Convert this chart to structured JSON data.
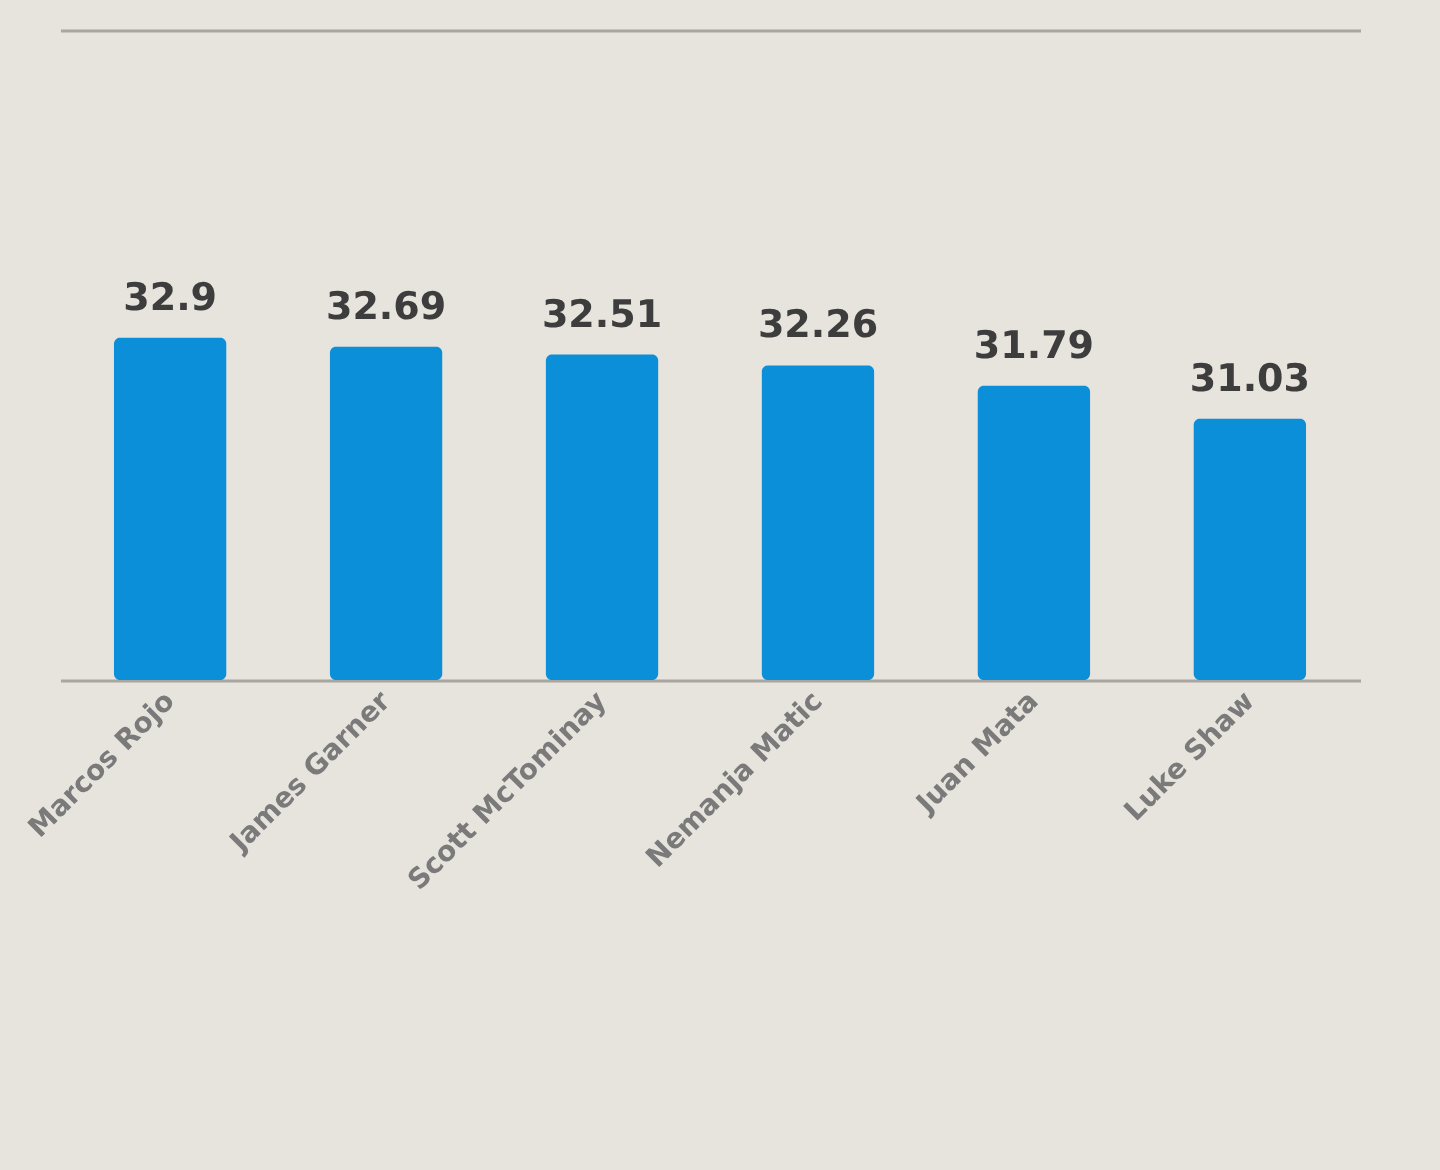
{
  "chart_data": {
    "type": "bar",
    "categories": [
      "Marcos Rojo",
      "James Garner",
      "Scott McTominay",
      "Nemanja Matic",
      "Juan Mata",
      "Luke Shaw"
    ],
    "values": [
      32.9,
      32.69,
      32.51,
      32.26,
      31.79,
      31.03
    ],
    "color": "#0a8fd8",
    "ylim": [
      25,
      40
    ],
    "tick_labels": "x",
    "data_labels": true
  }
}
